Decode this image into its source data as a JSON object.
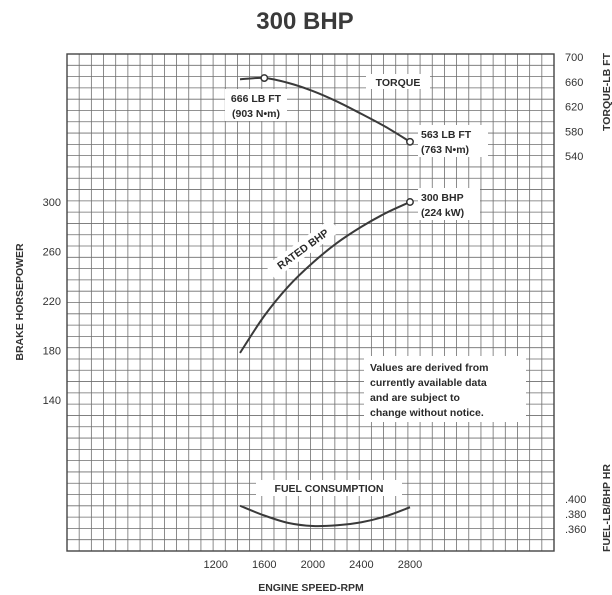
{
  "chart_data": {
    "type": "line",
    "title": "300 BHP",
    "xlabel": "ENGINE SPEED-RPM",
    "xlim": [
      400,
      2800
    ],
    "x_ticks": [
      "1200",
      "1600",
      "2000",
      "2400",
      "2800"
    ],
    "left_axis": {
      "label": "BRAKE HORSEPOWER",
      "ticks": [
        "300",
        "260",
        "220",
        "180",
        "140"
      ]
    },
    "torque_axis": {
      "label": "TORQUE-LB FT",
      "ticks": [
        "700",
        "660",
        "620",
        "580",
        "540"
      ]
    },
    "fuel_axis": {
      "label": "FUEL-LB/BHP HR",
      "ticks": [
        ".400",
        ".380",
        ".360"
      ]
    },
    "series": [
      {
        "name": "TORQUE",
        "axis": "torque",
        "x": [
          1400,
          1600,
          1800,
          2000,
          2200,
          2400,
          2600,
          2800
        ],
        "values": [
          664,
          666,
          658,
          645,
          628,
          608,
          587,
          563
        ],
        "points": [
          {
            "x": 1600,
            "y": 666,
            "label": [
              "666 LB FT",
              "(903 N•m)"
            ]
          },
          {
            "x": 2800,
            "y": 563,
            "label": [
              "563 LB FT",
              "(763 N•m)"
            ]
          }
        ]
      },
      {
        "name": "RATED BHP",
        "axis": "bhp",
        "x": [
          1400,
          1600,
          1800,
          2000,
          2200,
          2400,
          2600,
          2800
        ],
        "values": [
          178,
          208,
          232,
          251,
          267,
          280,
          291,
          300
        ],
        "points": [
          {
            "x": 2800,
            "y": 300,
            "label": [
              "300 BHP",
              "(224 kW)"
            ]
          }
        ]
      },
      {
        "name": "FUEL CONSUMPTION",
        "axis": "fuel",
        "x": [
          1400,
          1600,
          1800,
          2000,
          2200,
          2400,
          2600,
          2800
        ],
        "values": [
          0.391,
          0.378,
          0.368,
          0.364,
          0.365,
          0.369,
          0.377,
          0.389
        ]
      }
    ],
    "note": [
      "Values are derived from",
      "currently available data",
      "and are subject to",
      "change without notice."
    ],
    "grid": true
  }
}
